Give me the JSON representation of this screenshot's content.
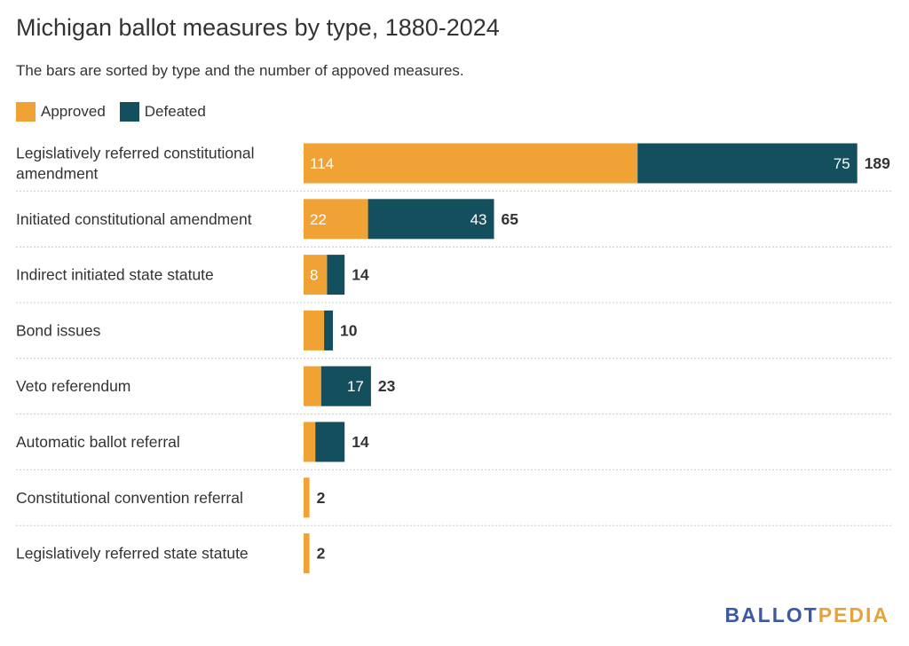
{
  "header": {
    "title": "Michigan ballot measures by type, 1880-2024",
    "subtitle": "The bars are sorted by type and the number of appoved measures."
  },
  "colors": {
    "approved": "#f0a334",
    "defeated": "#134f5c",
    "grid": "#cccccc"
  },
  "brand": {
    "part1": "BALLOT",
    "part2": "PEDIA"
  },
  "chart_data": {
    "type": "bar",
    "orientation": "horizontal",
    "stacked": true,
    "title": "Michigan ballot measures by type, 1880-2024",
    "subtitle": "The bars are sorted by type and the number of appoved measures.",
    "legend": {
      "placement": "top-left",
      "entries": [
        "Approved",
        "Defeated"
      ]
    },
    "categories": [
      [
        "Legislatively referred constitutional",
        "amendment"
      ],
      [
        "Initiated constitutional amendment"
      ],
      [
        "Indirect initiated state statute"
      ],
      [
        "Bond issues"
      ],
      [
        "Veto referendum"
      ],
      [
        "Automatic ballot referral"
      ],
      [
        "Constitutional convention referral"
      ],
      [
        "Legislatively referred state statute"
      ]
    ],
    "series": [
      {
        "name": "Approved",
        "values": [
          114,
          22,
          8,
          7,
          6,
          4,
          2,
          2
        ]
      },
      {
        "name": "Defeated",
        "values": [
          75,
          43,
          6,
          3,
          17,
          10,
          0,
          0
        ]
      }
    ],
    "data_labels": {
      "Approved": [
        "114",
        "22",
        "8",
        "",
        "",
        "",
        "",
        ""
      ],
      "Defeated": [
        "75",
        "43",
        "",
        "",
        "17",
        "",
        "",
        ""
      ]
    },
    "totals": [
      189,
      65,
      14,
      10,
      23,
      14,
      2,
      2
    ],
    "grid": true
  }
}
